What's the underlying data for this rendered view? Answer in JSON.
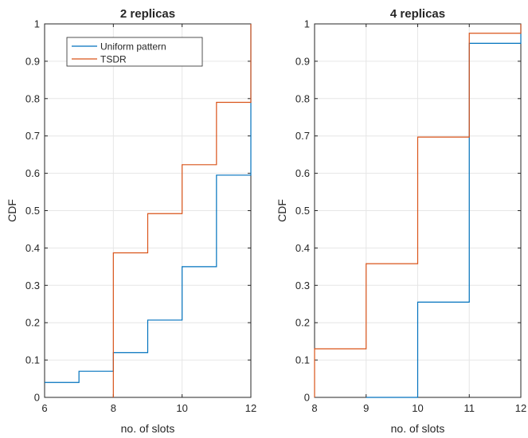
{
  "chart_data": [
    {
      "type": "line",
      "step": true,
      "title": "2 replicas",
      "xlabel": "no. of slots",
      "ylabel": "CDF",
      "xlim": [
        6,
        12
      ],
      "ylim": [
        0,
        1
      ],
      "xticks": [
        6,
        8,
        10,
        12
      ],
      "yticks": [
        0,
        0.1,
        0.2,
        0.3,
        0.4,
        0.5,
        0.6,
        0.7,
        0.8,
        0.9,
        1
      ],
      "grid": true,
      "legend": "top-left",
      "series": [
        {
          "name": "Uniform pattern",
          "color": "#0072BD",
          "points": [
            [
              6,
              0.04
            ],
            [
              7,
              0.04
            ],
            [
              7,
              0.07
            ],
            [
              8,
              0.07
            ],
            [
              8,
              0.12
            ],
            [
              9,
              0.12
            ],
            [
              9,
              0.207
            ],
            [
              10,
              0.207
            ],
            [
              10,
              0.35
            ],
            [
              11,
              0.35
            ],
            [
              11,
              0.595
            ],
            [
              12,
              0.595
            ],
            [
              12,
              1
            ]
          ]
        },
        {
          "name": "TSDR",
          "color": "#D95319",
          "points": [
            [
              8,
              0
            ],
            [
              8,
              0.387
            ],
            [
              9,
              0.387
            ],
            [
              9,
              0.492
            ],
            [
              10,
              0.492
            ],
            [
              10,
              0.623
            ],
            [
              11,
              0.623
            ],
            [
              11,
              0.79
            ],
            [
              12,
              0.79
            ],
            [
              12,
              1
            ]
          ]
        }
      ]
    },
    {
      "type": "line",
      "step": true,
      "title": "4 replicas",
      "xlabel": "no. of slots",
      "ylabel": "CDF",
      "xlim": [
        8,
        12
      ],
      "ylim": [
        0,
        1
      ],
      "xticks": [
        8,
        9,
        10,
        11,
        12
      ],
      "yticks": [
        0,
        0.1,
        0.2,
        0.3,
        0.4,
        0.5,
        0.6,
        0.7,
        0.8,
        0.9,
        1
      ],
      "grid": true,
      "series": [
        {
          "name": "Uniform pattern",
          "color": "#0072BD",
          "points": [
            [
              9,
              0
            ],
            [
              10,
              0
            ],
            [
              10,
              0.255
            ],
            [
              11,
              0.255
            ],
            [
              11,
              0.948
            ],
            [
              12,
              0.948
            ],
            [
              12,
              1
            ]
          ]
        },
        {
          "name": "TSDR",
          "color": "#D95319",
          "points": [
            [
              8,
              0
            ],
            [
              8,
              0.13
            ],
            [
              9,
              0.13
            ],
            [
              9,
              0.358
            ],
            [
              10,
              0.358
            ],
            [
              10,
              0.697
            ],
            [
              11,
              0.697
            ],
            [
              11,
              0.975
            ],
            [
              12,
              0.975
            ],
            [
              12,
              1
            ]
          ]
        }
      ]
    }
  ]
}
